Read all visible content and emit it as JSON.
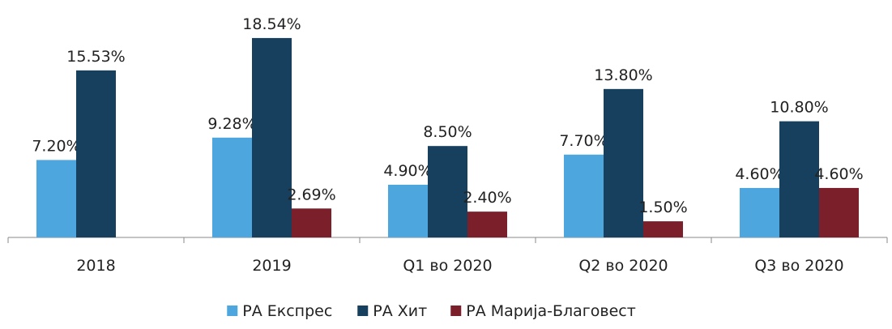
{
  "chart_data": {
    "type": "bar",
    "categories": [
      "2018",
      "2019",
      "Q1 во 2020",
      "Q2 во 2020",
      "Q3 во 2020"
    ],
    "series": [
      {
        "name": "РА Експрес",
        "color": "#4da6dd",
        "values": [
          7.2,
          9.28,
          4.9,
          7.7,
          4.6
        ],
        "value_labels": [
          "7.20%",
          "9.28%",
          "4.90%",
          "7.70%",
          "4.60%"
        ]
      },
      {
        "name": "РА Хит",
        "color": "#17405e",
        "values": [
          15.53,
          18.54,
          8.5,
          13.8,
          10.8
        ],
        "value_labels": [
          "15.53%",
          "18.54%",
          "8.50%",
          "13.80%",
          "10.80%"
        ]
      },
      {
        "name": "РА Марија-Благовест",
        "color": "#7b1f2b",
        "values": [
          null,
          2.69,
          2.4,
          1.5,
          4.6
        ],
        "value_labels": [
          null,
          "2.69%",
          "2.40%",
          "1.50%",
          "4.60%"
        ]
      }
    ],
    "ylim": [
      0,
      22
    ],
    "legend": "bottom"
  }
}
